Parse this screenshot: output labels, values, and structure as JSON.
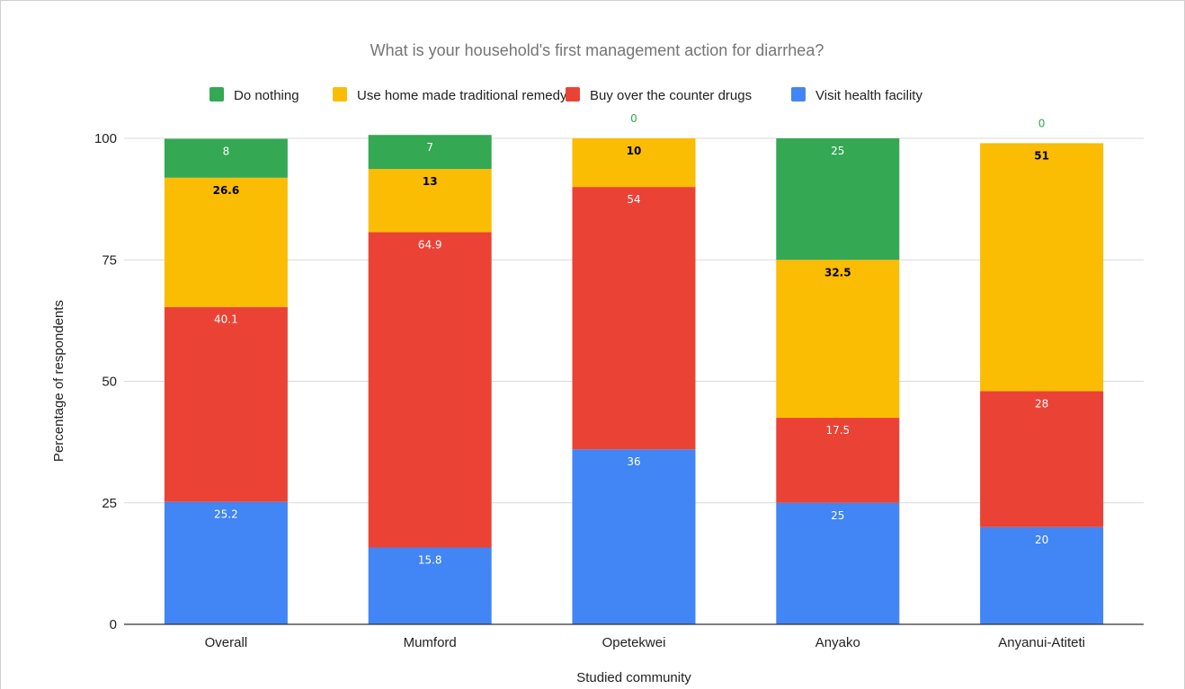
{
  "chart_data": {
    "type": "bar",
    "stacked": true,
    "title": "What is your household's first management action for diarrhea?",
    "xlabel": "Studied community",
    "ylabel": "Percentage of respondents",
    "ylim": [
      0,
      100
    ],
    "yticks": [
      "0",
      "25",
      "50",
      "75",
      "100"
    ],
    "grid": true,
    "legend_position": "top",
    "categories": [
      "Overall",
      "Mumford",
      "Opetekwei",
      "Anyako",
      "Anyanui-Atiteti"
    ],
    "series": [
      {
        "name": "Visit health facility",
        "color": "#4285f4",
        "label_color": "#ffffff",
        "values": [
          25.2,
          15.8,
          36,
          25,
          20
        ]
      },
      {
        "name": "Buy over the counter drugs",
        "color": "#ea4335",
        "label_color": "#ffffff",
        "values": [
          40.1,
          64.9,
          54,
          17.5,
          28
        ]
      },
      {
        "name": "Use home made traditional remedy",
        "color": "#fbbc04",
        "label_color": "#000000",
        "values": [
          26.6,
          13,
          10,
          32.5,
          51
        ]
      },
      {
        "name": "Do nothing",
        "color": "#34a853",
        "label_color": "#ffffff",
        "zero_label_color": "#34a853",
        "values": [
          8,
          7,
          0,
          25,
          0
        ]
      }
    ],
    "data_labels": [
      [
        "25.2",
        "15.8",
        "36",
        "25",
        "20"
      ],
      [
        "40.1",
        "64.9",
        "54",
        "17.5",
        "28"
      ],
      [
        "26.6",
        "13",
        "10",
        "32.5",
        "51"
      ],
      [
        "8",
        "7",
        "0",
        "25",
        "0"
      ]
    ]
  }
}
